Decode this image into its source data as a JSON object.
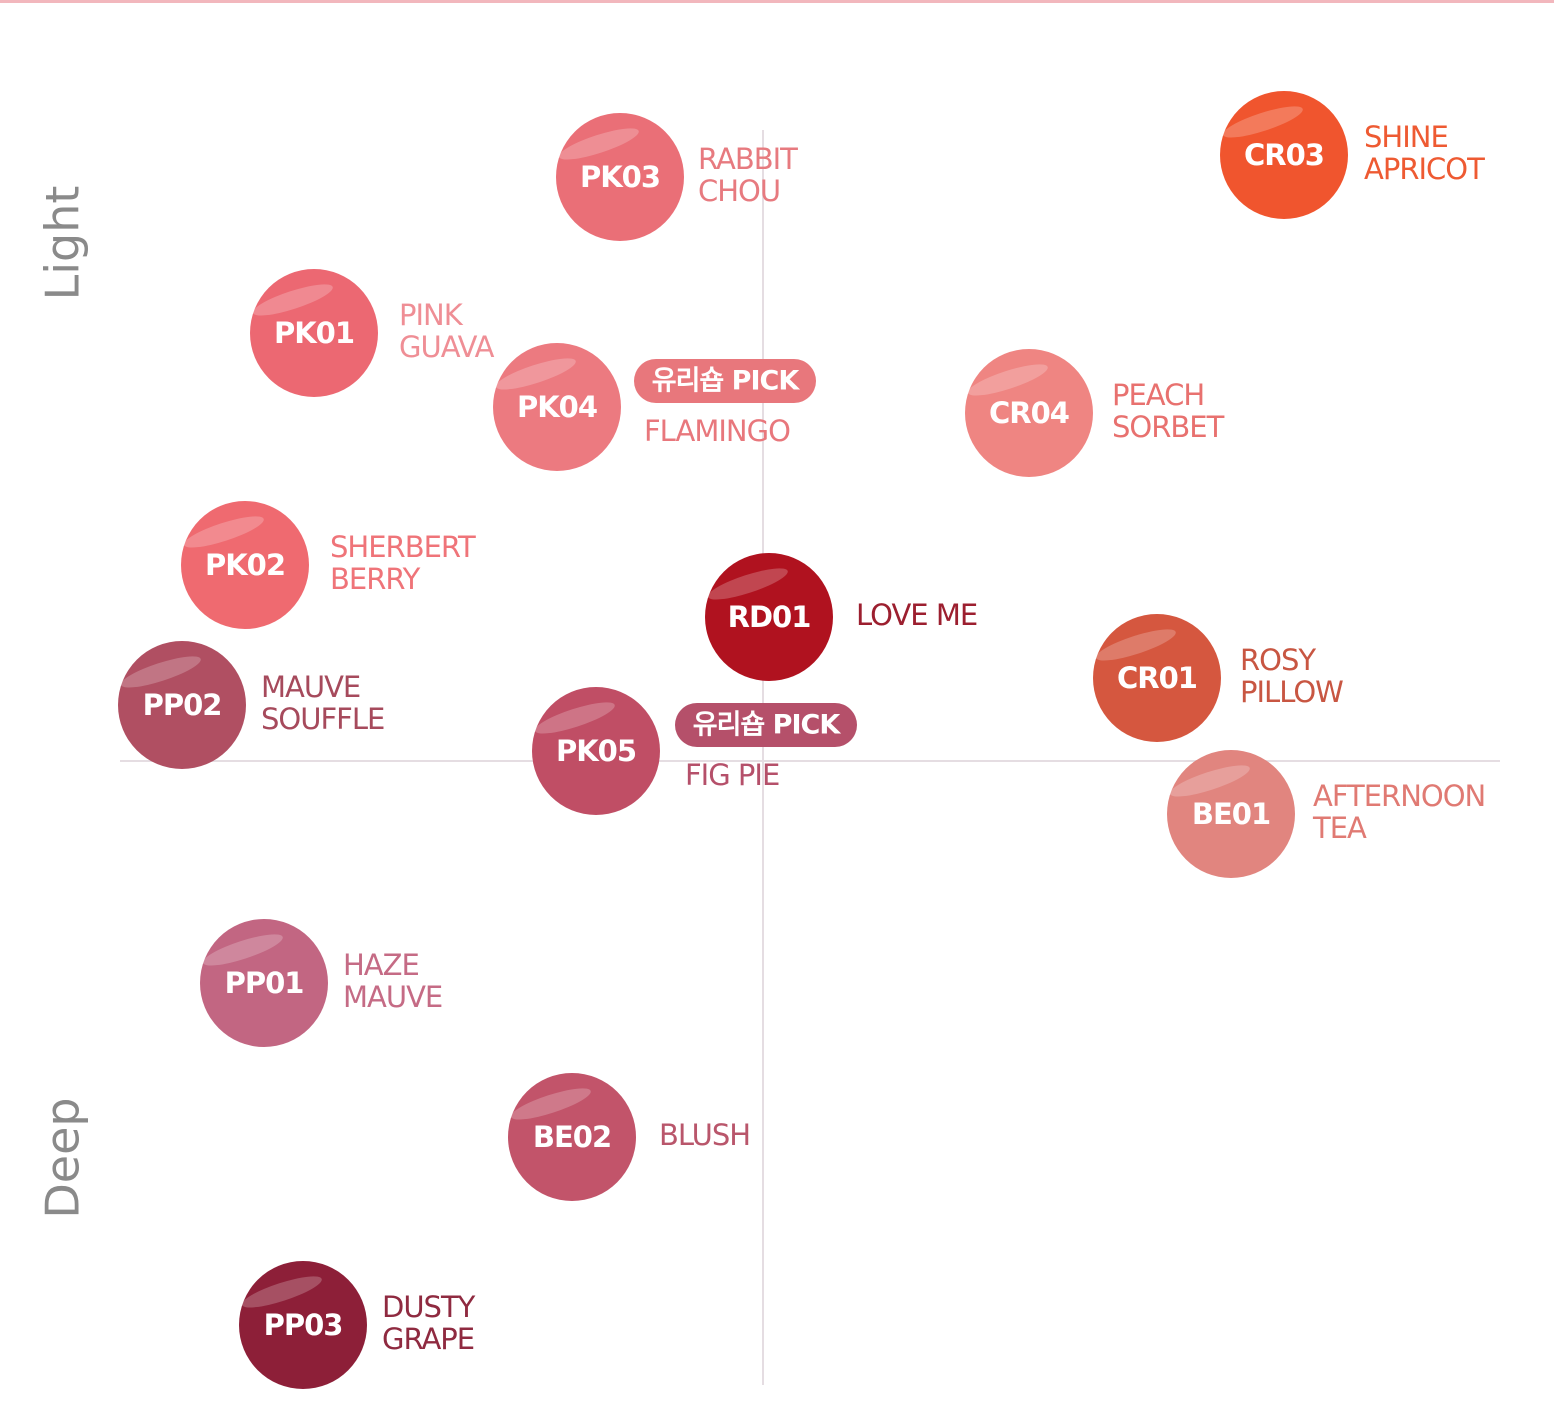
{
  "axis_labels": {
    "top": "Light",
    "bottom": "Deep"
  },
  "nodes": [
    {
      "code": "PK03",
      "name": [
        "RABBIT",
        "CHOU"
      ],
      "color": "#ea6f77",
      "label_color": "#e77a7f"
    },
    {
      "code": "CR03",
      "name": [
        "SHINE",
        "APRICOT"
      ],
      "color": "#f0552e",
      "label_color": "#ee5a32"
    },
    {
      "code": "PK01",
      "name": [
        "PINK",
        "GUAVA"
      ],
      "color": "#ec6872",
      "label_color": "#ef8e95"
    },
    {
      "code": "PK04",
      "badge": "유리숍 PICK",
      "name": [
        "FLAMINGO"
      ],
      "color": "#ec7a80",
      "label_color": "#e8777c"
    },
    {
      "code": "CR04",
      "name": [
        "PEACH",
        "SORBET"
      ],
      "color": "#ef8582",
      "label_color": "#e8716f"
    },
    {
      "code": "PK02",
      "name": [
        "SHERBERT",
        "BERRY"
      ],
      "color": "#ef6a70",
      "label_color": "#ef7479"
    },
    {
      "code": "RD01",
      "name": [
        "LOVE ME"
      ],
      "color": "#b0121f",
      "label_color": "#9c1f2f"
    },
    {
      "code": "CR01",
      "name": [
        "ROSY",
        "PILLOW"
      ],
      "color": "#d5573f",
      "label_color": "#c85642"
    },
    {
      "code": "PP02",
      "name": [
        "MAUVE",
        "SOUFFLE"
      ],
      "color": "#b04f62",
      "label_color": "#a64a5c"
    },
    {
      "code": "PK05",
      "badge": "유리숍 PICK",
      "name": [
        "FIG PIE"
      ],
      "color": "#c04e65",
      "label_color": "#b5506a"
    },
    {
      "code": "BE01",
      "name": [
        "AFTERNOON",
        "TEA"
      ],
      "color": "#e1857f",
      "label_color": "#e07a73"
    },
    {
      "code": "PP01",
      "name": [
        "HAZE",
        "MAUVE"
      ],
      "color": "#c26682",
      "label_color": "#c56b85"
    },
    {
      "code": "BE02",
      "name": [
        "BLUSH"
      ],
      "color": "#c2546a",
      "label_color": "#b9566b"
    },
    {
      "code": "PP03",
      "name": [
        "DUSTY",
        "GRAPE"
      ],
      "color": "#8d1f38",
      "label_color": "#8f2a40"
    }
  ]
}
